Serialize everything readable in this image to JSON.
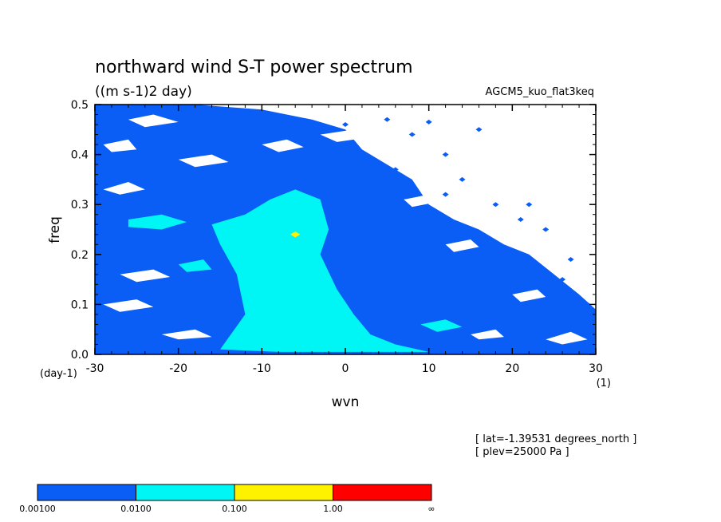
{
  "chart_data": {
    "type": "heatmap",
    "title": "northward wind S-T power spectrum",
    "subtitle": "((m s-1)2 day)",
    "run_label": "AGCM5_kuo_flat3keq",
    "xlabel": "wvn",
    "ylabel": "freq",
    "x_unit": "(1)",
    "y_unit": "(day-1)",
    "xlim": [
      -30,
      30
    ],
    "ylim": [
      0,
      0.5
    ],
    "xticks": [
      "-30",
      "-20",
      "-10",
      "0",
      "10",
      "20",
      "30"
    ],
    "yticks": [
      "0.0",
      "0.1",
      "0.2",
      "0.3",
      "0.4",
      "0.5"
    ],
    "info_lines": [
      "[ lat=-1.39531 degrees_north ]",
      "[ plev=25000 Pa ]"
    ],
    "colorbar": {
      "labels": [
        "0.00100",
        "0.0100",
        "0.100",
        "1.00",
        "∞"
      ],
      "colors": [
        "#0a5ef5",
        "#00f5f5",
        "#fff200",
        "#ff0000"
      ]
    },
    "regions": [
      {
        "level": "0.0100",
        "color": "#00f5f5",
        "polygon": [
          [
            -15,
            0.01
          ],
          [
            -12,
            0.08
          ],
          [
            -13,
            0.16
          ],
          [
            -15,
            0.22
          ],
          [
            -16,
            0.26
          ],
          [
            -12,
            0.28
          ],
          [
            -9,
            0.31
          ],
          [
            -6,
            0.33
          ],
          [
            -3,
            0.31
          ],
          [
            -2,
            0.25
          ],
          [
            -3,
            0.2
          ],
          [
            -1,
            0.13
          ],
          [
            1,
            0.08
          ],
          [
            3,
            0.04
          ],
          [
            6,
            0.02
          ],
          [
            10,
            0.005
          ],
          [
            0,
            0.005
          ],
          [
            -8,
            0.005
          ]
        ]
      },
      {
        "level": "0.0100",
        "color": "#00f5f5",
        "polygon": [
          [
            -26,
            0.27
          ],
          [
            -22,
            0.28
          ],
          [
            -19,
            0.265
          ],
          [
            -22,
            0.25
          ],
          [
            -26,
            0.255
          ]
        ]
      },
      {
        "level": "0.0100",
        "color": "#00f5f5",
        "polygon": [
          [
            9,
            0.06
          ],
          [
            12,
            0.07
          ],
          [
            14,
            0.055
          ],
          [
            11,
            0.045
          ]
        ]
      },
      {
        "level": "0.0100",
        "color": "#00f5f5",
        "polygon": [
          [
            -20,
            0.18
          ],
          [
            -17,
            0.19
          ],
          [
            -16,
            0.17
          ],
          [
            -19,
            0.165
          ]
        ]
      },
      {
        "level": "0.100",
        "color": "#fff200",
        "polygon": [
          [
            -6.6,
            0.24
          ],
          [
            -6,
            0.246
          ],
          [
            -5.4,
            0.24
          ],
          [
            -6,
            0.234
          ]
        ]
      }
    ],
    "gaps": [
      {
        "polygon": [
          [
            -26,
            0.47
          ],
          [
            -23,
            0.48
          ],
          [
            -20,
            0.465
          ],
          [
            -24,
            0.455
          ]
        ]
      },
      {
        "polygon": [
          [
            -29,
            0.42
          ],
          [
            -26,
            0.43
          ],
          [
            -25,
            0.41
          ],
          [
            -28,
            0.405
          ]
        ]
      },
      {
        "polygon": [
          [
            -20,
            0.39
          ],
          [
            -16,
            0.4
          ],
          [
            -14,
            0.385
          ],
          [
            -18,
            0.375
          ]
        ]
      },
      {
        "polygon": [
          [
            -29,
            0.33
          ],
          [
            -26,
            0.345
          ],
          [
            -24,
            0.33
          ],
          [
            -27,
            0.32
          ]
        ]
      },
      {
        "polygon": [
          [
            -27,
            0.16
          ],
          [
            -23,
            0.17
          ],
          [
            -21,
            0.155
          ],
          [
            -25,
            0.145
          ]
        ]
      },
      {
        "polygon": [
          [
            -29,
            0.1
          ],
          [
            -25,
            0.11
          ],
          [
            -23,
            0.095
          ],
          [
            -27,
            0.085
          ]
        ]
      },
      {
        "polygon": [
          [
            -22,
            0.04
          ],
          [
            -18,
            0.05
          ],
          [
            -16,
            0.035
          ],
          [
            -20,
            0.03
          ]
        ]
      },
      {
        "polygon": [
          [
            -3,
            0.44
          ],
          [
            1,
            0.45
          ],
          [
            3,
            0.435
          ],
          [
            -1,
            0.425
          ]
        ]
      },
      {
        "polygon": [
          [
            7,
            0.31
          ],
          [
            10,
            0.32
          ],
          [
            11,
            0.305
          ],
          [
            8,
            0.295
          ]
        ]
      },
      {
        "polygon": [
          [
            12,
            0.22
          ],
          [
            15,
            0.23
          ],
          [
            16,
            0.215
          ],
          [
            13,
            0.205
          ]
        ]
      },
      {
        "polygon": [
          [
            20,
            0.12
          ],
          [
            23,
            0.13
          ],
          [
            24,
            0.115
          ],
          [
            21,
            0.105
          ]
        ]
      },
      {
        "polygon": [
          [
            15,
            0.04
          ],
          [
            18,
            0.05
          ],
          [
            19,
            0.035
          ],
          [
            16,
            0.03
          ]
        ]
      },
      {
        "polygon": [
          [
            24,
            0.03
          ],
          [
            27,
            0.045
          ],
          [
            29,
            0.03
          ],
          [
            26,
            0.02
          ]
        ]
      },
      {
        "polygon": [
          [
            -10,
            0.42
          ],
          [
            -7,
            0.43
          ],
          [
            -5,
            0.415
          ],
          [
            -8,
            0.405
          ]
        ]
      }
    ],
    "specks": [
      [
        0,
        0.46
      ],
      [
        5,
        0.47
      ],
      [
        8,
        0.44
      ],
      [
        12,
        0.4
      ],
      [
        14,
        0.35
      ],
      [
        18,
        0.3
      ],
      [
        21,
        0.27
      ],
      [
        24,
        0.25
      ],
      [
        27,
        0.19
      ],
      [
        29,
        0.1
      ],
      [
        26,
        0.15
      ],
      [
        20,
        0.19
      ],
      [
        17,
        0.23
      ],
      [
        12,
        0.32
      ],
      [
        6,
        0.37
      ],
      [
        3,
        0.39
      ],
      [
        10,
        0.465
      ],
      [
        16,
        0.45
      ],
      [
        22,
        0.3
      ],
      [
        28,
        0.06
      ]
    ]
  }
}
